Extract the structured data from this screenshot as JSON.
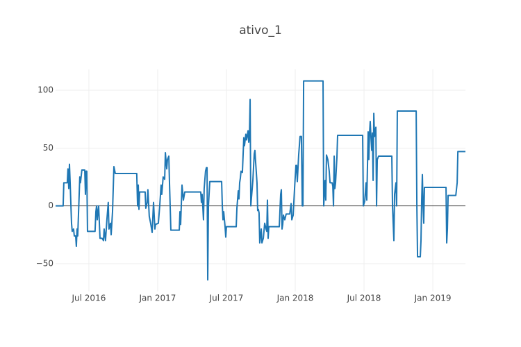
{
  "chart_data": {
    "type": "line",
    "title": "ativo_1",
    "color": "#1f77b4",
    "grid": true,
    "x": [
      2016.258,
      2016.313,
      2016.318,
      2016.343,
      2016.348,
      2016.354,
      2016.359,
      2016.364,
      2016.374,
      2016.379,
      2016.389,
      2016.394,
      2016.404,
      2016.409,
      2016.414,
      2016.419,
      2016.434,
      2016.439,
      2016.449,
      2016.47,
      2016.475,
      2016.48,
      2016.485,
      2016.49,
      2016.545,
      2016.551,
      2016.556,
      2016.561,
      2016.566,
      2016.571,
      2016.581,
      2016.596,
      2016.606,
      2016.611,
      2016.621,
      2016.631,
      2016.641,
      2016.646,
      2016.657,
      2016.662,
      2016.672,
      2016.682,
      2016.692,
      2016.848,
      2016.854,
      2016.859,
      2016.864,
      2016.869,
      2016.909,
      2016.914,
      2016.924,
      2016.929,
      2016.939,
      2016.949,
      2016.96,
      2016.97,
      2016.98,
      2016.985,
      2017.005,
      2017.015,
      2017.025,
      2017.03,
      2017.04,
      2017.051,
      2017.056,
      2017.066,
      2017.071,
      2017.081,
      2017.086,
      2017.096,
      2017.157,
      2017.162,
      2017.167,
      2017.177,
      2017.187,
      2017.197,
      2017.313,
      2017.318,
      2017.323,
      2017.328,
      2017.333,
      2017.338,
      2017.348,
      2017.354,
      2017.359,
      2017.364,
      2017.369,
      2017.379,
      2017.465,
      2017.47,
      2017.475,
      2017.48,
      2017.49,
      2017.495,
      2017.5,
      2017.571,
      2017.576,
      2017.586,
      2017.591,
      2017.596,
      2017.601,
      2017.606,
      2017.616,
      2017.626,
      2017.631,
      2017.641,
      2017.646,
      2017.657,
      2017.662,
      2017.667,
      2017.672,
      2017.677,
      2017.692,
      2017.702,
      2017.707,
      2017.712,
      2017.722,
      2017.727,
      2017.732,
      2017.737,
      2017.742,
      2017.753,
      2017.758,
      2017.768,
      2017.778,
      2017.788,
      2017.793,
      2017.798,
      2017.803,
      2017.808,
      2017.884,
      2017.894,
      2017.899,
      2017.904,
      2017.909,
      2017.914,
      2017.924,
      2017.934,
      2017.96,
      2017.97,
      2017.975,
      2017.985,
      2017.995,
      2018.005,
      2018.01,
      2018.015,
      2018.025,
      2018.035,
      2018.04,
      2018.045,
      2018.051,
      2018.056,
      2018.061,
      2018.202,
      2018.207,
      2018.217,
      2018.222,
      2018.227,
      2018.237,
      2018.247,
      2018.253,
      2018.268,
      2018.273,
      2018.278,
      2018.283,
      2018.288,
      2018.293,
      2018.303,
      2018.308,
      2018.49,
      2018.495,
      2018.505,
      2018.515,
      2018.52,
      2018.53,
      2018.535,
      2018.54,
      2018.545,
      2018.551,
      2018.556,
      2018.561,
      2018.566,
      2018.571,
      2018.576,
      2018.586,
      2018.591,
      2018.596,
      2018.606,
      2018.702,
      2018.707,
      2018.712,
      2018.717,
      2018.722,
      2018.732,
      2018.737,
      2018.742,
      2018.879,
      2018.884,
      2018.889,
      2018.909,
      2018.914,
      2018.919,
      2018.924,
      2018.929,
      2018.934,
      2018.939,
      2019.096,
      2019.101,
      2019.106,
      2019.111,
      2019.167,
      2019.177,
      2019.182,
      2019.237
    ],
    "values": [
      0,
      0,
      20,
      20,
      32,
      15,
      36,
      20,
      -15,
      -22,
      -20,
      -26,
      -26,
      -35,
      -20,
      -26,
      25,
      20,
      31,
      31,
      10,
      30,
      30,
      -22,
      -22,
      -5,
      0,
      -12,
      -5,
      0,
      -28,
      -28,
      -30,
      -20,
      -30,
      -12,
      3,
      -20,
      -15,
      -25,
      -5,
      34,
      28,
      28,
      0,
      18,
      -3,
      12,
      12,
      -2,
      3,
      14,
      -9,
      -15,
      -23,
      3,
      -20,
      -16,
      -15,
      0,
      18,
      10,
      25,
      23,
      46,
      32,
      40,
      43,
      20,
      -21,
      -21,
      -5,
      -16,
      18,
      5,
      12,
      12,
      3,
      10,
      0,
      -12,
      15,
      30,
      33,
      33,
      -64,
      0,
      21,
      21,
      0,
      -12,
      -5,
      -18,
      -27,
      -18,
      -18,
      -2,
      13,
      6,
      20,
      24,
      30,
      29,
      59,
      52,
      62,
      57,
      65,
      55,
      60,
      92,
      0,
      22,
      45,
      48,
      38,
      20,
      -4,
      -3,
      -6,
      -32,
      -20,
      -32,
      -28,
      -15,
      -20,
      -22,
      5,
      -28,
      -18,
      -18,
      10,
      14,
      -20,
      -16,
      -8,
      -12,
      -7,
      -7,
      2,
      -12,
      -8,
      15,
      35,
      35,
      21,
      44,
      60,
      60,
      60,
      0,
      0,
      108,
      108,
      0,
      22,
      5,
      44,
      40,
      30,
      20,
      20,
      17,
      0,
      43,
      15,
      20,
      42,
      61,
      61,
      0,
      4,
      20,
      5,
      64,
      40,
      63,
      73,
      58,
      48,
      63,
      22,
      80,
      60,
      68,
      0,
      40,
      43,
      43,
      0,
      -15,
      -30,
      10,
      20,
      0,
      82,
      82,
      0,
      -44,
      -44,
      -30,
      5,
      27,
      0,
      -15,
      16,
      16,
      -32,
      -20,
      9,
      9,
      20,
      47,
      47
    ],
    "xlim": [
      2016.258,
      2019.237
    ],
    "xticks": [
      {
        "value": 2016.5,
        "label": "Jul 2016"
      },
      {
        "value": 2017.0,
        "label": "Jan 2017"
      },
      {
        "value": 2017.5,
        "label": "Jul 2017"
      },
      {
        "value": 2018.0,
        "label": "Jan 2018"
      },
      {
        "value": 2018.5,
        "label": "Jul 2018"
      },
      {
        "value": 2019.0,
        "label": "Jan 2019"
      }
    ],
    "ylim": [
      -74,
      118
    ],
    "yticks": [
      {
        "value": -50,
        "label": "−50"
      },
      0,
      50,
      100
    ]
  }
}
